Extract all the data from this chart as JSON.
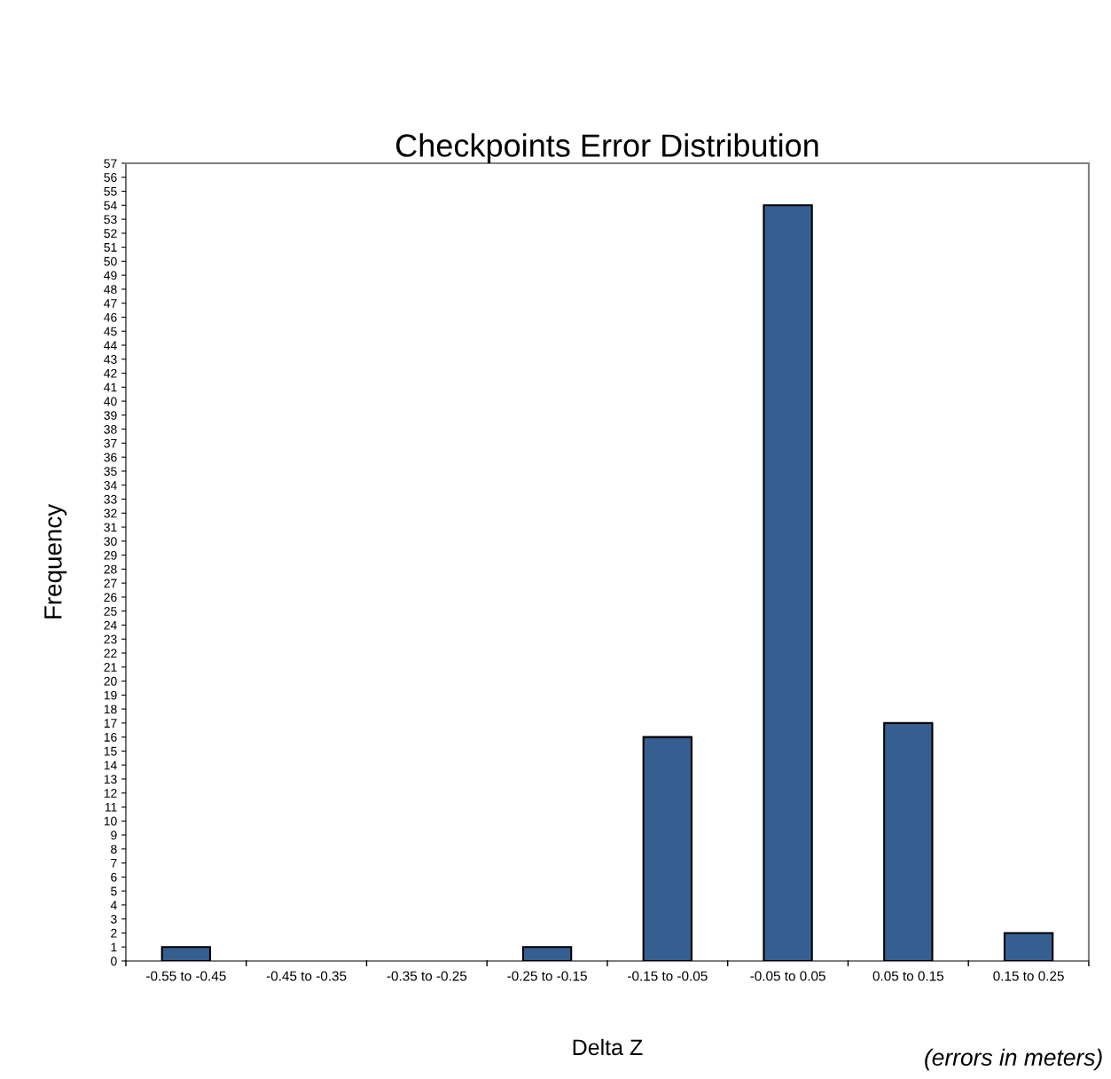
{
  "chart_data": {
    "type": "bar",
    "title": "Checkpoints Error Distribution",
    "xlabel": "Delta Z",
    "ylabel": "Frequency",
    "categories": [
      "-0.55 to -0.45",
      "-0.45 to -0.35",
      "-0.35 to -0.25",
      "-0.25 to -0.15",
      "-0.15 to -0.05",
      "-0.05 to 0.05",
      "0.05 to 0.15",
      "0.15 to 0.25"
    ],
    "values": [
      1,
      0,
      0,
      1,
      16,
      54,
      17,
      2
    ],
    "color": "#355f91",
    "ylim": [
      0,
      57
    ],
    "yticks": [
      0,
      1,
      2,
      3,
      4,
      5,
      6,
      7,
      8,
      9,
      10,
      11,
      12,
      13,
      14,
      15,
      16,
      17,
      18,
      19,
      20,
      21,
      22,
      23,
      24,
      25,
      26,
      27,
      28,
      29,
      30,
      31,
      32,
      33,
      34,
      35,
      36,
      37,
      38,
      39,
      40,
      41,
      42,
      43,
      44,
      45,
      46,
      47,
      48,
      49,
      50,
      51,
      52,
      53,
      54,
      55,
      56,
      57
    ],
    "grid": false,
    "annotations": [
      "(errors in meters)"
    ]
  }
}
